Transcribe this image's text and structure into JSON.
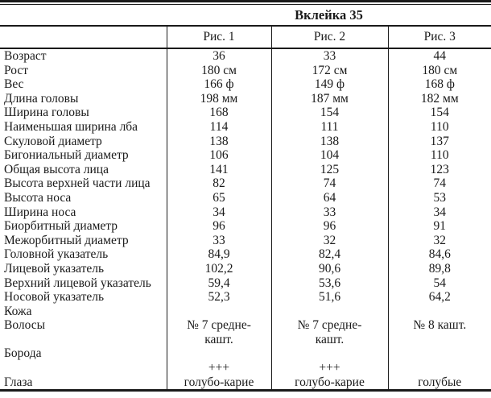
{
  "colors": {
    "background": "#ffffff",
    "text": "#1a1a1a",
    "rule": "#1a1a1a"
  },
  "table": {
    "title": "Вклейка 35",
    "columns": [
      "Рис. 1",
      "Рис. 2",
      "Рис. 3"
    ],
    "rows": [
      {
        "label": "Возраст",
        "fig1": "36",
        "fig2": "33",
        "fig3": "44"
      },
      {
        "label": "Рост",
        "fig1": "180 см",
        "fig2": "172 см",
        "fig3": "180 см"
      },
      {
        "label": "Вес",
        "fig1": "166 ф",
        "fig2": "149 ф",
        "fig3": "168 ф"
      },
      {
        "label": "Длина головы",
        "fig1": "198 мм",
        "fig2": "187 мм",
        "fig3": "182 мм"
      },
      {
        "label": "Ширина головы",
        "fig1": "168",
        "fig2": "154",
        "fig3": "154"
      },
      {
        "label": "Наименьшая ширина лба",
        "fig1": "114",
        "fig2": "111",
        "fig3": "110"
      },
      {
        "label": "Скуловой диаметр",
        "fig1": "138",
        "fig2": "138",
        "fig3": "137"
      },
      {
        "label": "Бигониальный диаметр",
        "fig1": "106",
        "fig2": "104",
        "fig3": "110"
      },
      {
        "label": "Общая высота лица",
        "fig1": "141",
        "fig2": "125",
        "fig3": "123"
      },
      {
        "label": "Высота верхней части лица",
        "fig1": "82",
        "fig2": "74",
        "fig3": "74"
      },
      {
        "label": "Высота носа",
        "fig1": "65",
        "fig2": "64",
        "fig3": "53"
      },
      {
        "label": "Ширина носа",
        "fig1": "34",
        "fig2": "33",
        "fig3": "34"
      },
      {
        "label": "Биорбитный диаметр",
        "fig1": "96",
        "fig2": "96",
        "fig3": "91"
      },
      {
        "label": "Межорбитный диаметр",
        "fig1": "33",
        "fig2": "32",
        "fig3": "32"
      },
      {
        "label": "Головной указатель",
        "fig1": "84,9",
        "fig2": "82,4",
        "fig3": "84,6"
      },
      {
        "label": "Лицевой указатель",
        "fig1": "102,2",
        "fig2": "90,6",
        "fig3": "89,8"
      },
      {
        "label": "Верхний лицевой указатель",
        "fig1": "59,4",
        "fig2": "53,6",
        "fig3": "54"
      },
      {
        "label": "Носовой указатель",
        "fig1": "52,3",
        "fig2": "51,6",
        "fig3": "64,2"
      },
      {
        "label": "Кожа",
        "fig1": "",
        "fig2": "",
        "fig3": ""
      },
      {
        "label": "Волосы",
        "fig1": "№ 7 средне-\nкашт.",
        "fig2": "№ 7 средне-\nкашт.",
        "fig3": "№ 8 кашт."
      },
      {
        "label": "Борода",
        "fig1": "",
        "fig2": "",
        "fig3": ""
      },
      {
        "label": "",
        "fig1": "+++",
        "fig2": "+++",
        "fig3": ""
      },
      {
        "label": "Глаза",
        "fig1": "голубо-карие",
        "fig2": "голубо-карие",
        "fig3": "голубые"
      }
    ]
  }
}
